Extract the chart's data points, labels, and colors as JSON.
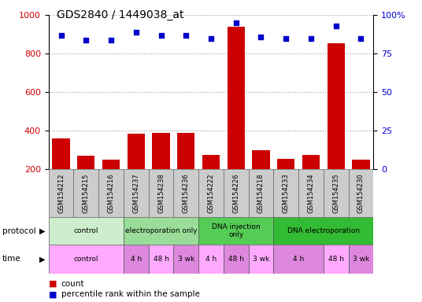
{
  "title": "GDS2840 / 1449038_at",
  "samples": [
    "GSM154212",
    "GSM154215",
    "GSM154216",
    "GSM154237",
    "GSM154238",
    "GSM154236",
    "GSM154222",
    "GSM154226",
    "GSM154218",
    "GSM154233",
    "GSM154234",
    "GSM154235",
    "GSM154230"
  ],
  "counts": [
    360,
    270,
    250,
    385,
    390,
    390,
    275,
    940,
    300,
    255,
    275,
    855,
    248
  ],
  "percentiles": [
    87,
    84,
    84,
    89,
    87,
    87,
    85,
    95,
    86,
    85,
    85,
    93,
    85
  ],
  "ylim_left": [
    200,
    1000
  ],
  "ylim_right": [
    0,
    100
  ],
  "yticks_left": [
    200,
    400,
    600,
    800,
    1000
  ],
  "yticks_right": [
    0,
    25,
    50,
    75,
    100
  ],
  "bar_color": "#cc0000",
  "dot_color": "#0000cc",
  "bg_color": "#ffffff",
  "grid_color": "#999999",
  "tick_color_left": "#cc0000",
  "tick_color_right": "#0000cc",
  "sample_box_color": "#cccccc",
  "proto_actual": [
    [
      0,
      3,
      "control",
      "#cceecc"
    ],
    [
      3,
      6,
      "electroporation only",
      "#99dd99"
    ],
    [
      6,
      9,
      "DNA injection\nonly",
      "#55cc55"
    ],
    [
      9,
      13,
      "DNA electroporation",
      "#33bb33"
    ]
  ],
  "time_actual": [
    [
      0,
      3,
      "control",
      "#ffaaff"
    ],
    [
      3,
      4,
      "4 h",
      "#dd88dd"
    ],
    [
      4,
      5,
      "48 h",
      "#ffaaff"
    ],
    [
      5,
      6,
      "3 wk",
      "#dd88dd"
    ],
    [
      6,
      7,
      "4 h",
      "#ffaaff"
    ],
    [
      7,
      8,
      "48 h",
      "#dd88dd"
    ],
    [
      8,
      9,
      "3 wk",
      "#ffaaff"
    ],
    [
      9,
      11,
      "4 h",
      "#dd88dd"
    ],
    [
      11,
      12,
      "48 h",
      "#ffaaff"
    ],
    [
      12,
      13,
      "3 wk",
      "#dd88dd"
    ]
  ]
}
